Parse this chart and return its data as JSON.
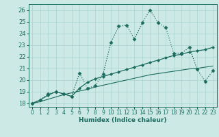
{
  "xlabel": "Humidex (Indice chaleur)",
  "xlim": [
    -0.5,
    23.5
  ],
  "ylim": [
    17.7,
    26.5
  ],
  "xticks": [
    0,
    1,
    2,
    3,
    4,
    5,
    6,
    7,
    8,
    9,
    10,
    11,
    12,
    13,
    14,
    15,
    16,
    17,
    18,
    19,
    20,
    21,
    22,
    23
  ],
  "yticks": [
    18,
    19,
    20,
    21,
    22,
    23,
    24,
    25,
    26
  ],
  "bg_color": "#cce9e5",
  "line_color": "#1a6b5e",
  "grid_color": "#aad4cf",
  "line1_x": [
    0,
    1,
    2,
    3,
    4,
    5,
    6,
    7,
    8,
    9,
    10,
    11,
    12,
    13,
    14,
    15,
    16,
    17,
    18,
    19,
    20,
    21,
    22,
    23
  ],
  "line1_y": [
    18.0,
    18.3,
    18.8,
    19.0,
    18.8,
    18.6,
    20.6,
    19.3,
    19.5,
    20.5,
    23.2,
    24.6,
    24.7,
    23.5,
    24.9,
    26.0,
    24.9,
    24.5,
    22.3,
    22.3,
    22.8,
    20.9,
    19.9,
    20.8
  ],
  "line2_x": [
    0,
    1,
    2,
    3,
    4,
    5,
    6,
    7,
    8,
    9,
    10,
    11,
    12,
    13,
    14,
    15,
    16,
    17,
    18,
    19,
    20,
    21,
    22,
    23
  ],
  "line2_y": [
    18.0,
    18.3,
    18.7,
    19.0,
    18.8,
    18.6,
    19.3,
    19.8,
    20.1,
    20.3,
    20.5,
    20.7,
    20.9,
    21.1,
    21.3,
    21.5,
    21.7,
    21.9,
    22.1,
    22.2,
    22.4,
    22.5,
    22.6,
    22.8
  ],
  "line3_x": [
    0,
    1,
    2,
    3,
    4,
    5,
    6,
    7,
    8,
    9,
    10,
    11,
    12,
    13,
    14,
    15,
    16,
    17,
    18,
    19,
    20,
    21,
    22,
    23
  ],
  "line3_y": [
    18.0,
    18.15,
    18.35,
    18.55,
    18.75,
    18.9,
    19.05,
    19.2,
    19.4,
    19.55,
    19.7,
    19.85,
    20.0,
    20.15,
    20.3,
    20.45,
    20.55,
    20.65,
    20.75,
    20.85,
    20.95,
    21.0,
    21.1,
    21.2
  ]
}
